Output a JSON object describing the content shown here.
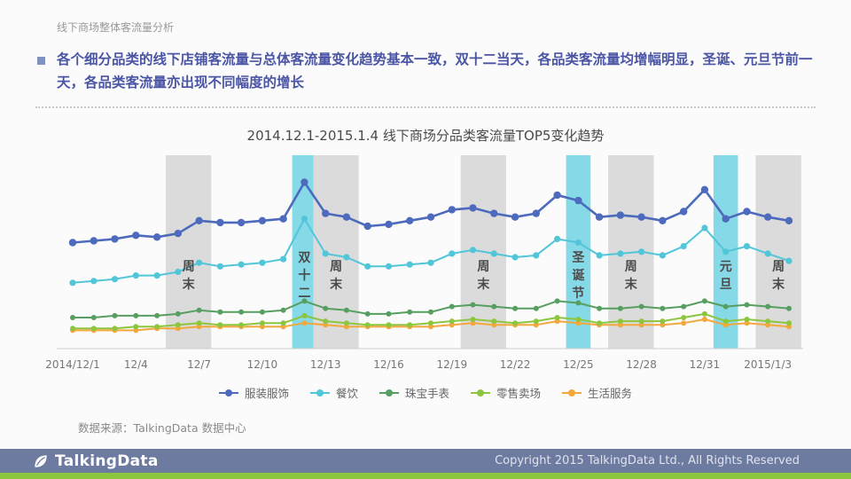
{
  "page": {
    "header": "线下商场整体客流量分析",
    "bullet_text": "各个细分品类的线下店铺客流量与总体客流量变化趋势基本一致，双十二当天，各品类客流量均增幅明显，圣诞、元旦节前一天，各品类客流量亦出现不同幅度的增长",
    "source_note": "数据来源：TalkingData 数据中心",
    "footer": {
      "logo_text": "TalkingData",
      "copyright": "Copyright 2015 TalkingData Ltd., All Rights Reserved",
      "bar_color": "#6e7ba0",
      "strip_color": "#8cc63f"
    }
  },
  "chart_data": {
    "type": "line",
    "title": "2014.12.1-2015.1.4 线下商场分品类客流量TOP5变化趋势",
    "xlabel": "",
    "ylabel": "",
    "ylim": [
      0,
      100
    ],
    "grid": false,
    "legend_position": "bottom",
    "categories": [
      "12/1",
      "12/2",
      "12/3",
      "12/4",
      "12/5",
      "12/6",
      "12/7",
      "12/8",
      "12/9",
      "12/10",
      "12/11",
      "12/12",
      "12/13",
      "12/14",
      "12/15",
      "12/16",
      "12/17",
      "12/18",
      "12/19",
      "12/20",
      "12/21",
      "12/22",
      "12/23",
      "12/24",
      "12/25",
      "12/26",
      "12/27",
      "12/28",
      "12/29",
      "12/30",
      "12/31",
      "1/1",
      "1/2",
      "1/3",
      "1/4"
    ],
    "x_ticks": [
      {
        "label": "2014/12/1",
        "day": 0
      },
      {
        "label": "12/4",
        "day": 3
      },
      {
        "label": "12/7",
        "day": 6
      },
      {
        "label": "12/10",
        "day": 9
      },
      {
        "label": "12/13",
        "day": 12
      },
      {
        "label": "12/16",
        "day": 15
      },
      {
        "label": "12/19",
        "day": 18
      },
      {
        "label": "12/22",
        "day": 21
      },
      {
        "label": "12/25",
        "day": 24
      },
      {
        "label": "12/28",
        "day": 27
      },
      {
        "label": "12/31",
        "day": 30
      },
      {
        "label": "2015/1/3",
        "day": 33
      }
    ],
    "series": [
      {
        "name": "服装服饰",
        "color": "#4d6abc",
        "values": [
          58,
          59,
          60,
          62,
          61,
          63,
          70,
          69,
          69,
          70,
          71,
          91,
          74,
          72,
          67,
          68,
          70,
          72,
          76,
          77,
          74,
          72,
          74,
          84,
          81,
          72,
          73,
          72,
          70,
          75,
          87,
          71,
          75,
          72,
          70
        ]
      },
      {
        "name": "餐饮",
        "color": "#50c6d8",
        "values": [
          36,
          37,
          38,
          40,
          40,
          42,
          47,
          45,
          46,
          47,
          49,
          71,
          52,
          50,
          45,
          45,
          46,
          47,
          52,
          54,
          52,
          50,
          51,
          60,
          58,
          51,
          52,
          53,
          51,
          56,
          66,
          53,
          56,
          52,
          48
        ]
      },
      {
        "name": "珠宝手表",
        "color": "#579f60",
        "values": [
          17,
          17,
          18,
          18,
          18,
          19,
          21,
          20,
          20,
          20,
          21,
          26,
          22,
          21,
          19,
          19,
          20,
          20,
          23,
          24,
          23,
          22,
          22,
          26,
          25,
          22,
          22,
          23,
          22,
          23,
          26,
          23,
          24,
          23,
          22
        ]
      },
      {
        "name": "零售卖场",
        "color": "#8cc63f",
        "values": [
          11,
          11,
          11,
          12,
          12,
          13,
          14,
          13,
          13,
          14,
          14,
          18,
          15,
          14,
          13,
          13,
          13,
          14,
          15,
          16,
          15,
          14,
          15,
          17,
          16,
          14,
          15,
          15,
          15,
          17,
          19,
          15,
          16,
          15,
          14
        ]
      },
      {
        "name": "生活服务",
        "color": "#f3a73c",
        "values": [
          10,
          10,
          10,
          10,
          11,
          11,
          12,
          12,
          12,
          12,
          12,
          14,
          13,
          12,
          12,
          12,
          12,
          12,
          13,
          14,
          13,
          13,
          13,
          15,
          14,
          13,
          13,
          13,
          13,
          14,
          16,
          13,
          14,
          13,
          12
        ]
      }
    ],
    "bands": [
      {
        "label": "周末",
        "days": [
          5,
          6
        ],
        "color": "#dbdbdb"
      },
      {
        "label": "双十二",
        "days": [
          11,
          11
        ],
        "color": "#86d9e6"
      },
      {
        "label": "周末",
        "days": [
          12,
          13
        ],
        "color": "#dbdbdb"
      },
      {
        "label": "周末",
        "days": [
          19,
          20
        ],
        "color": "#dbdbdb"
      },
      {
        "label": "圣诞节",
        "days": [
          24,
          24
        ],
        "color": "#86d9e6"
      },
      {
        "label": "周末",
        "days": [
          26,
          27
        ],
        "color": "#dbdbdb"
      },
      {
        "label": "元旦",
        "days": [
          31,
          31
        ],
        "color": "#86d9e6"
      },
      {
        "label": "周末",
        "days": [
          33,
          34
        ],
        "color": "#dbdbdb"
      }
    ]
  }
}
